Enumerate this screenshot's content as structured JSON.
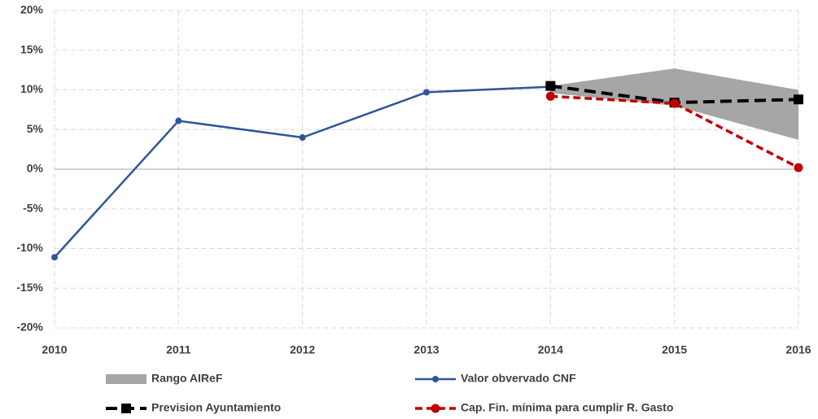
{
  "chart_data": {
    "type": "line",
    "categories": [
      "2010",
      "2011",
      "2012",
      "2013",
      "2014",
      "2015",
      "2016"
    ],
    "ylim": [
      -20,
      20
    ],
    "yticks": [
      {
        "value": -20,
        "label": "-20%"
      },
      {
        "value": -15,
        "label": "-15%"
      },
      {
        "value": -10,
        "label": "-10%"
      },
      {
        "value": -5,
        "label": "-5%"
      },
      {
        "value": 0,
        "label": "0%"
      },
      {
        "value": 5,
        "label": "5%"
      },
      {
        "value": 10,
        "label": "10%"
      },
      {
        "value": 15,
        "label": "15%"
      },
      {
        "value": 20,
        "label": "20%"
      }
    ],
    "grid": true,
    "band": {
      "name": "Rango AIReF",
      "color": "#a6a6a6",
      "lower": [
        null,
        null,
        null,
        null,
        9.6,
        8.0,
        3.7
      ],
      "upper": [
        null,
        null,
        null,
        null,
        10.5,
        12.7,
        10.0
      ]
    },
    "series": [
      {
        "name": "Valor obvervado CNF",
        "color": "#2f5597",
        "marker": "circle",
        "dashed": false,
        "values": [
          -11.1,
          6.1,
          4.0,
          9.7,
          10.4,
          null,
          null
        ]
      },
      {
        "name": "Prevision Ayuntamiento",
        "color": "#000000",
        "marker": "square",
        "dashed": true,
        "values": [
          null,
          null,
          null,
          null,
          10.5,
          8.4,
          8.8
        ]
      },
      {
        "name": "Cap. Fin. mínima para cumplir R. Gasto",
        "color": "#c00000",
        "marker": "circle",
        "dashed": true,
        "values": [
          null,
          null,
          null,
          null,
          9.2,
          8.3,
          0.2
        ]
      }
    ]
  }
}
